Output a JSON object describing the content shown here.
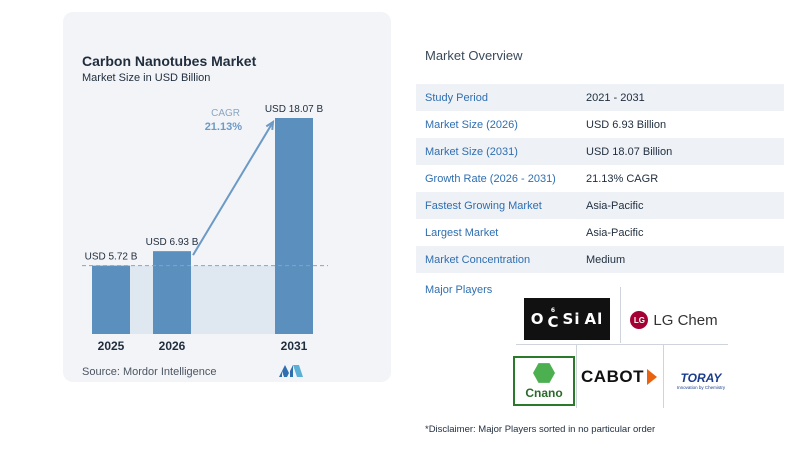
{
  "chart_data": {
    "type": "bar",
    "title": "Carbon Nanotubes Market",
    "subtitle": "Market Size in USD Billion",
    "categories": [
      "2025",
      "2026",
      "2031"
    ],
    "values": [
      5.72,
      6.93,
      18.07
    ],
    "value_labels": [
      "USD 5.72 B",
      "USD 6.93 B",
      "USD 18.07 B"
    ],
    "bar_color": "#5b8fbd",
    "cagr_label": "CAGR",
    "cagr_value": "21.13%",
    "source": "Source:  Mordor Intelligence"
  },
  "overview": {
    "title": "Market Overview",
    "rows": [
      {
        "label": "Study Period",
        "value": "2021 - 2031"
      },
      {
        "label": "Market Size (2026)",
        "value": "USD 6.93 Billion"
      },
      {
        "label": "Market Size (2031)",
        "value": "USD 18.07 Billion"
      },
      {
        "label": "Growth Rate (2026 - 2031)",
        "value": "21.13% CAGR"
      },
      {
        "label": "Fastest Growing Market",
        "value": "Asia-Pacific"
      },
      {
        "label": "Largest Market",
        "value": "Asia-Pacific"
      },
      {
        "label": "Market Concentration",
        "value": "Medium"
      }
    ],
    "players_label": "Major Players",
    "disclaimer": "*Disclaimer: Major Players sorted in no particular order"
  },
  "logos": {
    "ocsial": {
      "o": "O",
      "c": "C",
      "c_sup": "6",
      "si": "Si",
      "al": "Al"
    },
    "lgchem": {
      "mark": "LG",
      "text": "LG Chem"
    },
    "cnano": "Cnano",
    "cabot": "CABOT",
    "toray": {
      "name": "TORAY",
      "tagline": "Innovation by Chemistry"
    }
  }
}
